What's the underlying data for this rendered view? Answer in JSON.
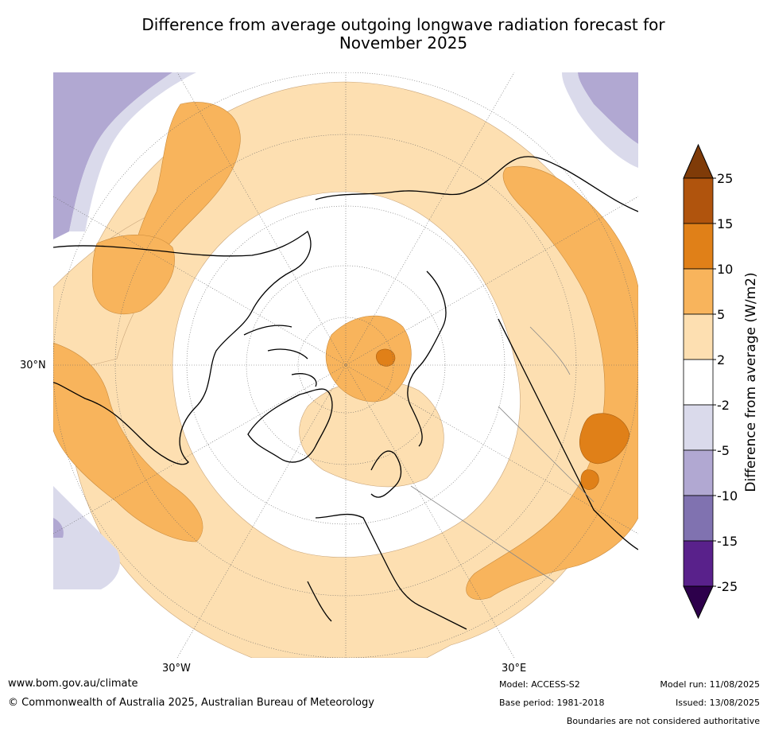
{
  "title_line1": "Difference from average outgoing longwave radiation forecast for",
  "title_line2": "November 2025",
  "map": {
    "lat_label": "30°N",
    "lon_label_west": "30°W",
    "lon_label_east": "30°E"
  },
  "colorbar": {
    "label": "Difference from average (W/m2)",
    "ticks": [
      "25",
      "15",
      "10",
      "5",
      "2",
      "-2",
      "-5",
      "-10",
      "-15",
      "-25"
    ],
    "colors_top_to_bottom": [
      "#b0540d",
      "#e08018",
      "#f8b45c",
      "#fddfb1",
      "#ffffff",
      "#dadaeb",
      "#b1a8d2",
      "#8072b0",
      "#59218b"
    ],
    "extend_high_color": "#7f3b08",
    "extend_low_color": "#2d004b"
  },
  "footer": {
    "website": "www.bom.gov.au/climate",
    "copyright": "© Commonwealth of Australia 2025, Australian Bureau of Meteorology",
    "model": "Model: ACCESS-S2",
    "base_period": "Base period: 1981-2018",
    "model_run": "Model run: 11/08/2025",
    "issued": "Issued: 13/08/2025",
    "disclaimer": "Boundaries are not considered authoritative"
  }
}
